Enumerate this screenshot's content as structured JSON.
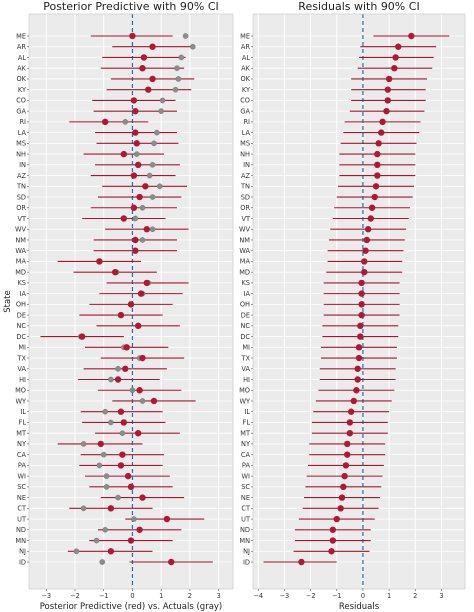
{
  "states": [
    "ME",
    "AR",
    "AL",
    "AK",
    "OK",
    "KY",
    "CO",
    "GA",
    "RI",
    "LA",
    "MS",
    "NH",
    "IN",
    "AZ",
    "TN",
    "SD",
    "OR",
    "VT",
    "WV",
    "NM",
    "WA",
    "MA",
    "MD",
    "KS",
    "IA",
    "OH",
    "DE",
    "NC",
    "DC",
    "MI",
    "TX",
    "VA",
    "HI",
    "MO",
    "WY",
    "IL",
    "FL",
    "MT",
    "NY",
    "CA",
    "PA",
    "WI",
    "SC",
    "NE",
    "CT",
    "UT",
    "ND",
    "MN",
    "NJ",
    "ID"
  ],
  "colors": {
    "interval": "#a4172f",
    "point": "#b0183a",
    "actual": "#8c8c8c",
    "zero_line": "#1f6fb4",
    "panel_bg": "#ebebeb",
    "grid": "#ffffff"
  },
  "chart_data": [
    {
      "type": "scatter",
      "title": "Posterior Predictive with 90% CI",
      "xlabel": "Posterior Predictive (red) vs. Actuals (gray)",
      "ylabel": "State",
      "xlim": [
        -3.6,
        3.5
      ],
      "xticks": [
        -3,
        -2,
        -1,
        0,
        1,
        2,
        3
      ],
      "mean": [
        0.0,
        0.7,
        0.4,
        0.35,
        0.7,
        0.55,
        0.05,
        0.1,
        -0.95,
        0.1,
        0.15,
        -0.3,
        0.2,
        0.05,
        0.45,
        0.25,
        0.05,
        -0.3,
        0.5,
        0.1,
        0.1,
        -1.15,
        -0.6,
        0.5,
        0.3,
        -0.05,
        -0.4,
        0.2,
        -1.75,
        -0.2,
        0.35,
        -0.25,
        -0.5,
        0.25,
        0.75,
        -0.4,
        -0.3,
        0.2,
        -1.1,
        -0.35,
        -0.4,
        -0.15,
        -0.05,
        0.35,
        -0.75,
        1.2,
        0.25,
        -0.05,
        -0.75,
        1.35
      ],
      "lower": [
        -1.45,
        -0.7,
        -1.05,
        -1.1,
        -0.75,
        -0.9,
        -1.4,
        -1.35,
        -2.2,
        -1.3,
        -1.25,
        -1.7,
        -1.3,
        -1.45,
        -1.05,
        -1.2,
        -1.45,
        -1.75,
        -0.95,
        -1.35,
        -1.35,
        -2.6,
        -2.05,
        -0.9,
        -1.15,
        -1.5,
        -1.85,
        -1.25,
        -3.2,
        -1.65,
        -1.1,
        -1.7,
        -1.9,
        -1.2,
        -0.7,
        -1.8,
        -1.75,
        -1.3,
        -2.6,
        -1.8,
        -1.85,
        -1.65,
        -1.5,
        -1.1,
        -2.2,
        -0.25,
        -1.2,
        -1.5,
        -2.25,
        -0.1
      ],
      "upper": [
        1.4,
        2.1,
        1.85,
        1.8,
        2.15,
        2.05,
        1.5,
        1.55,
        0.55,
        1.55,
        1.6,
        1.1,
        1.65,
        1.5,
        1.9,
        1.7,
        1.55,
        1.15,
        1.95,
        1.55,
        1.55,
        0.3,
        0.85,
        1.95,
        1.75,
        1.4,
        1.05,
        1.65,
        -0.3,
        1.25,
        1.8,
        1.2,
        0.95,
        1.7,
        2.2,
        1.05,
        1.15,
        1.65,
        0.35,
        1.1,
        1.05,
        1.3,
        1.4,
        1.8,
        0.7,
        2.5,
        1.7,
        1.4,
        0.7,
        2.8
      ],
      "actual": [
        1.85,
        2.1,
        1.7,
        1.55,
        1.6,
        1.5,
        1.05,
        1.0,
        -0.25,
        0.85,
        0.75,
        0.15,
        0.7,
        0.6,
        0.95,
        0.7,
        0.35,
        0.1,
        0.7,
        0.35,
        0.1,
        -1.15,
        -0.55,
        0.55,
        0.35,
        -0.05,
        -0.4,
        0.2,
        -1.8,
        -0.3,
        0.25,
        -0.5,
        -0.75,
        0.0,
        0.35,
        -0.95,
        -0.75,
        -0.35,
        -1.7,
        -1.0,
        -1.15,
        -0.9,
        -0.9,
        -0.5,
        -1.7,
        0.05,
        -0.95,
        -1.25,
        -1.95,
        -1.05
      ]
    },
    {
      "type": "scatter",
      "title": "Residuals with 90% CI",
      "xlabel": "Residuals",
      "ylabel": "",
      "xlim": [
        -4.2,
        3.9
      ],
      "xticks": [
        -4,
        -3,
        -2,
        -1,
        0,
        1,
        2,
        3
      ],
      "mean": [
        1.85,
        1.35,
        1.25,
        1.2,
        1.0,
        0.95,
        0.95,
        0.9,
        0.75,
        0.7,
        0.6,
        0.55,
        0.55,
        0.55,
        0.5,
        0.45,
        0.35,
        0.3,
        0.2,
        0.15,
        0.1,
        0.05,
        0.05,
        -0.05,
        -0.05,
        -0.05,
        -0.05,
        -0.1,
        -0.1,
        -0.15,
        -0.15,
        -0.2,
        -0.2,
        -0.25,
        -0.35,
        -0.45,
        -0.5,
        -0.5,
        -0.6,
        -0.6,
        -0.65,
        -0.7,
        -0.75,
        -0.8,
        -0.85,
        -1.0,
        -1.15,
        -1.15,
        -1.2,
        -2.35
      ],
      "lower": [
        0.4,
        -0.1,
        -0.15,
        -0.2,
        -0.45,
        -0.45,
        -0.45,
        -0.5,
        -0.7,
        -0.75,
        -0.85,
        -0.9,
        -0.9,
        -0.9,
        -0.95,
        -1.0,
        -1.1,
        -1.15,
        -1.25,
        -1.3,
        -1.35,
        -1.35,
        -1.4,
        -1.5,
        -1.5,
        -1.5,
        -1.5,
        -1.55,
        -1.55,
        -1.6,
        -1.6,
        -1.65,
        -1.65,
        -1.7,
        -1.8,
        -1.9,
        -1.95,
        -1.95,
        -2.05,
        -2.05,
        -2.1,
        -2.15,
        -2.2,
        -2.25,
        -2.3,
        -2.45,
        -2.6,
        -2.6,
        -2.65,
        -3.8
      ],
      "upper": [
        3.3,
        2.8,
        2.7,
        2.65,
        2.45,
        2.4,
        2.4,
        2.35,
        2.2,
        2.15,
        2.05,
        2.0,
        2.0,
        2.0,
        1.95,
        1.9,
        1.8,
        1.75,
        1.65,
        1.6,
        1.55,
        1.5,
        1.5,
        1.4,
        1.4,
        1.4,
        1.4,
        1.35,
        1.35,
        1.3,
        1.3,
        1.25,
        1.25,
        1.2,
        1.1,
        1.0,
        0.95,
        0.95,
        0.85,
        0.85,
        0.8,
        0.75,
        0.7,
        0.65,
        0.6,
        0.45,
        0.3,
        0.3,
        0.25,
        -1.0
      ],
      "actual": []
    }
  ]
}
